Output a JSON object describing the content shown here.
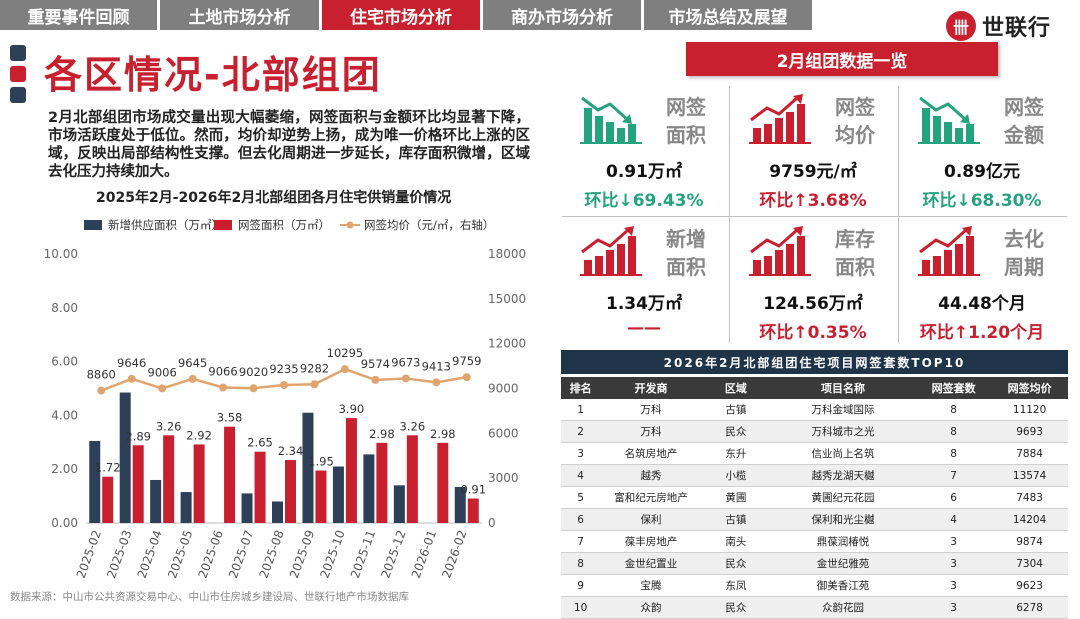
{
  "nav": {
    "tabs": [
      {
        "label": "重要事件回顾",
        "active": false
      },
      {
        "label": "土地市场分析",
        "active": false
      },
      {
        "label": "住宅市场分析",
        "active": true
      },
      {
        "label": "商办市场分析",
        "active": false
      },
      {
        "label": "市场总结及展望",
        "active": false
      }
    ]
  },
  "brand": {
    "name": "世联行",
    "mark": "卌"
  },
  "page": {
    "title": "各区情况-北部组团",
    "intro": "2月北部组团市场成交量出现大幅萎缩，网签面积与金额环比均显著下降，市场活跃度处于低位。然而，均价却逆势上扬，成为唯一价格环比上涨的区域，反映出局部结构性支撑。但去化周期进一步延长，库存面积微增，区域去化压力持续加大。",
    "source": "数据来源：中山市公共资源交易中心、中山市住房城乡建设局、世联行地产市场数据库"
  },
  "colors": {
    "red": "#c8202f",
    "navy": "#2e4057",
    "orange": "#e0a46e",
    "green": "#25a27f",
    "gray": "#7f7f7f"
  },
  "chart_data": {
    "type": "bar",
    "title": "2025年2月-2026年2月北部组团各月住宅供销量价情况",
    "categories": [
      "2025-02",
      "2025-03",
      "2025-04",
      "2025-05",
      "2025-06",
      "2025-07",
      "2025-08",
      "2025-09",
      "2025-10",
      "2025-11",
      "2025-12",
      "2026-01",
      "2026-02"
    ],
    "series": [
      {
        "name": "新增供应面积（万㎡）",
        "type": "bar",
        "axis": "left",
        "color": "#2e4057",
        "values": [
          3.05,
          4.85,
          1.6,
          1.15,
          0.0,
          1.1,
          0.8,
          4.1,
          2.1,
          2.55,
          1.4,
          0.0,
          1.34
        ]
      },
      {
        "name": "网签面积（万㎡）",
        "type": "bar",
        "axis": "left",
        "color": "#c8202f",
        "values": [
          1.72,
          2.89,
          3.26,
          2.92,
          3.58,
          2.65,
          2.34,
          1.95,
          3.9,
          2.98,
          3.26,
          2.98,
          0.91
        ]
      },
      {
        "name": "网签均价（元/㎡，右轴）",
        "type": "line",
        "axis": "right",
        "color": "#e0a46e",
        "values": [
          8860,
          9646,
          9006,
          9645,
          9066,
          9020,
          9235,
          9282,
          10295,
          9574,
          9673,
          9413,
          9759
        ]
      }
    ],
    "bar_labels": {
      "series": 1,
      "values": [
        "1.72",
        "2.89",
        "3.26",
        "2.92",
        "3.58",
        "2.65",
        "2.34",
        "1.95",
        "3.90",
        "2.98",
        "3.26",
        "2.98",
        "0.91"
      ]
    },
    "line_labels": [
      "8860",
      "9646",
      "9006",
      "9645",
      "9066",
      "9020",
      "9235",
      "9282",
      "10295",
      "9574",
      "9673",
      "9413",
      "9759"
    ],
    "yleft": {
      "min": 0,
      "max": 10,
      "ticks": [
        "0.00",
        "2.00",
        "4.00",
        "6.00",
        "8.00",
        "10.00"
      ]
    },
    "yright": {
      "min": 0,
      "max": 18000,
      "ticks": [
        "0",
        "3000",
        "6000",
        "9000",
        "12000",
        "15000",
        "18000"
      ]
    },
    "legend_position": "top"
  },
  "kpi_panel": {
    "header": "2月组团数据一览",
    "cards": [
      {
        "label1": "网签",
        "label2": "面积",
        "value": "0.91万㎡",
        "change": "环比↓69.43%",
        "trend": "down"
      },
      {
        "label1": "网签",
        "label2": "均价",
        "value": "9759元/㎡",
        "change": "环比↑3.68%",
        "trend": "up"
      },
      {
        "label1": "网签",
        "label2": "金额",
        "value": "0.89亿元",
        "change": "环比↓68.30%",
        "trend": "down"
      },
      {
        "label1": "新增",
        "label2": "面积",
        "value": "1.34万㎡",
        "change": "——",
        "trend": "up"
      },
      {
        "label1": "库存",
        "label2": "面积",
        "value": "124.56万㎡",
        "change": "环比↑0.35%",
        "trend": "up"
      },
      {
        "label1": "去化",
        "label2": "周期",
        "value": "44.48个月",
        "change": "环比↑1.20个月",
        "trend": "up"
      }
    ]
  },
  "top10": {
    "title": "2026年2月北部组团住宅项目网签套数TOP10",
    "headers": [
      "排名",
      "开发商",
      "区域",
      "项目名称",
      "网签套数",
      "网签均价"
    ],
    "rows": [
      [
        "1",
        "万科",
        "古镇",
        "万科金域国际",
        "8",
        "11120"
      ],
      [
        "2",
        "万科",
        "民众",
        "万科城市之光",
        "8",
        "9693"
      ],
      [
        "3",
        "名筑房地产",
        "东升",
        "信业尚上名筑",
        "8",
        "7884"
      ],
      [
        "4",
        "越秀",
        "小榄",
        "越秀龙湖天樾",
        "7",
        "13574"
      ],
      [
        "5",
        "富和纪元房地产",
        "黄圃",
        "黄圃纪元花园",
        "6",
        "7483"
      ],
      [
        "6",
        "保利",
        "古镇",
        "保利和光尘樾",
        "4",
        "14204"
      ],
      [
        "7",
        "葆丰房地产",
        "南头",
        "鼎葆润椿悦",
        "3",
        "9874"
      ],
      [
        "8",
        "金世纪置业",
        "民众",
        "金世纪雅苑",
        "3",
        "7304"
      ],
      [
        "9",
        "宝腾",
        "东凤",
        "御美香江苑",
        "3",
        "9623"
      ],
      [
        "10",
        "众韵",
        "民众",
        "众韵花园",
        "3",
        "6278"
      ]
    ]
  }
}
